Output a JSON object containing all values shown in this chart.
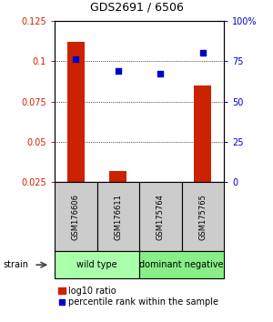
{
  "title": "GDS2691 / 6506",
  "samples": [
    "GSM176606",
    "GSM176611",
    "GSM175764",
    "GSM175765"
  ],
  "log10_ratio": [
    0.112,
    0.032,
    0.022,
    0.085
  ],
  "percentile_rank": [
    76,
    69,
    67,
    80
  ],
  "group_labels": [
    "wild type",
    "dominant negative"
  ],
  "group_colors": [
    "#aaffaa",
    "#88ee88"
  ],
  "group_ranges": [
    [
      0,
      1
    ],
    [
      2,
      3
    ]
  ],
  "ylim_left": [
    0.025,
    0.125
  ],
  "ylim_right": [
    0,
    100
  ],
  "yticks_left": [
    0.025,
    0.05,
    0.075,
    0.1,
    0.125
  ],
  "yticks_right": [
    0,
    25,
    50,
    75,
    100
  ],
  "ytick_labels_left": [
    "0.025",
    "0.05",
    "0.075",
    "0.1",
    "0.125"
  ],
  "ytick_labels_right": [
    "0",
    "25",
    "50",
    "75",
    "100%"
  ],
  "bar_color": "#cc2200",
  "dot_color": "#0000cc",
  "sample_box_color": "#cccccc",
  "bar_width": 0.4,
  "strain_label": "strain",
  "legend_ratio_label": "log10 ratio",
  "legend_pct_label": "percentile rank within the sample",
  "title_fontsize": 9,
  "tick_fontsize": 7,
  "sample_fontsize": 6,
  "group_fontsize": 7,
  "legend_fontsize": 7
}
